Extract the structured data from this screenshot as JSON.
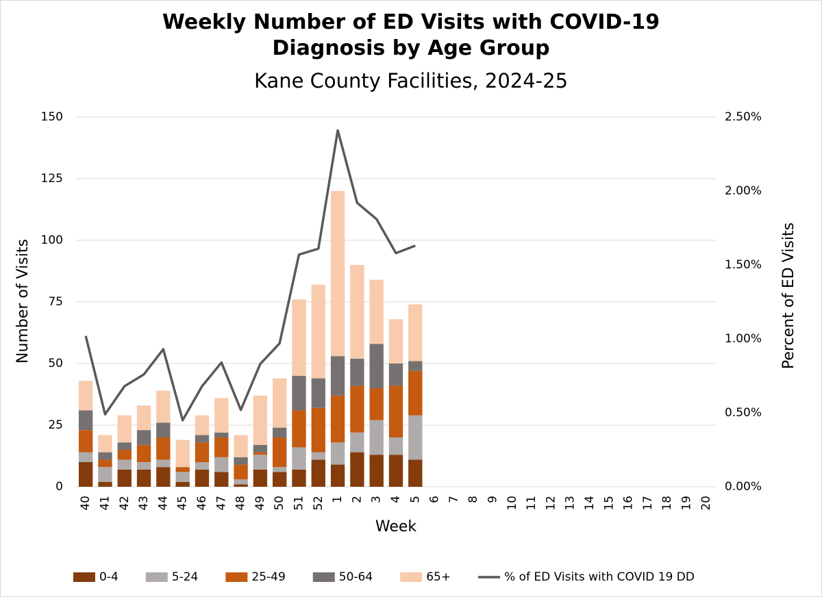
{
  "chart_data": {
    "type": "bar",
    "stacked": true,
    "title": "Weekly Number of ED Visits with COVID-19 Diagnosis by Age Group",
    "subtitle": "Kane County Facilities, 2024-25",
    "x_label": "Week",
    "y_label": "Number of Visits",
    "y2_label": "Percent of ED Visits",
    "categories": [
      "40",
      "41",
      "42",
      "43",
      "44",
      "45",
      "46",
      "47",
      "48",
      "49",
      "50",
      "51",
      "52",
      "1",
      "2",
      "3",
      "4",
      "5",
      "6",
      "7",
      "8",
      "9",
      "10",
      "11",
      "12",
      "13",
      "14",
      "15",
      "16",
      "17",
      "18",
      "19",
      "20"
    ],
    "series": [
      {
        "name": "0-4",
        "color": "#843c0c",
        "values": [
          10,
          2,
          7,
          7,
          8,
          2,
          7,
          6,
          1,
          7,
          6,
          7,
          11,
          9,
          14,
          13,
          13,
          11,
          null,
          null,
          null,
          null,
          null,
          null,
          null,
          null,
          null,
          null,
          null,
          null,
          null,
          null,
          null
        ]
      },
      {
        "name": "5-24",
        "color": "#afabab",
        "values": [
          4,
          6,
          4,
          3,
          3,
          4,
          3,
          6,
          2,
          6,
          2,
          9,
          3,
          9,
          8,
          14,
          7,
          18,
          null,
          null,
          null,
          null,
          null,
          null,
          null,
          null,
          null,
          null,
          null,
          null,
          null,
          null,
          null
        ]
      },
      {
        "name": "25-49",
        "color": "#c55a11",
        "values": [
          9,
          3,
          4,
          7,
          9,
          2,
          8,
          8,
          6,
          1,
          12,
          15,
          18,
          19,
          19,
          13,
          21,
          18,
          null,
          null,
          null,
          null,
          null,
          null,
          null,
          null,
          null,
          null,
          null,
          null,
          null,
          null,
          null
        ]
      },
      {
        "name": "50-64",
        "color": "#767171",
        "values": [
          8,
          3,
          3,
          6,
          6,
          0,
          3,
          2,
          3,
          3,
          4,
          14,
          12,
          16,
          11,
          18,
          9,
          4,
          null,
          null,
          null,
          null,
          null,
          null,
          null,
          null,
          null,
          null,
          null,
          null,
          null,
          null,
          null
        ]
      },
      {
        "name": "65+",
        "color": "#f8cbad",
        "values": [
          12,
          7,
          11,
          10,
          13,
          11,
          8,
          14,
          9,
          20,
          20,
          31,
          38,
          67,
          38,
          26,
          18,
          23,
          null,
          null,
          null,
          null,
          null,
          null,
          null,
          null,
          null,
          null,
          null,
          null,
          null,
          null,
          null
        ]
      },
      {
        "name": "% of ED Visits with COVID 19 DD",
        "color": "#595959",
        "type": "line",
        "axis": "y2",
        "values": [
          1.02,
          0.49,
          0.68,
          0.76,
          0.93,
          0.45,
          0.68,
          0.84,
          0.52,
          0.83,
          0.97,
          1.57,
          1.61,
          2.41,
          1.92,
          1.81,
          1.58,
          1.63,
          null,
          null,
          null,
          null,
          null,
          null,
          null,
          null,
          null,
          null,
          null,
          null,
          null,
          null,
          null
        ]
      }
    ],
    "ylim": [
      0,
      150
    ],
    "yticks": [
      0,
      25,
      50,
      75,
      100,
      125,
      150
    ],
    "y2lim": [
      0,
      2.5
    ],
    "y2ticks": [
      {
        "value": 0,
        "label": "0.00%"
      },
      {
        "value": 0.5,
        "label": "0.50%"
      },
      {
        "value": 1,
        "label": "1.00%"
      },
      {
        "value": 1.5,
        "label": "1.50%"
      },
      {
        "value": 2,
        "label": "2.00%"
      },
      {
        "value": 2.5,
        "label": "2.50%"
      }
    ],
    "grid": true,
    "legend": "bottom"
  }
}
